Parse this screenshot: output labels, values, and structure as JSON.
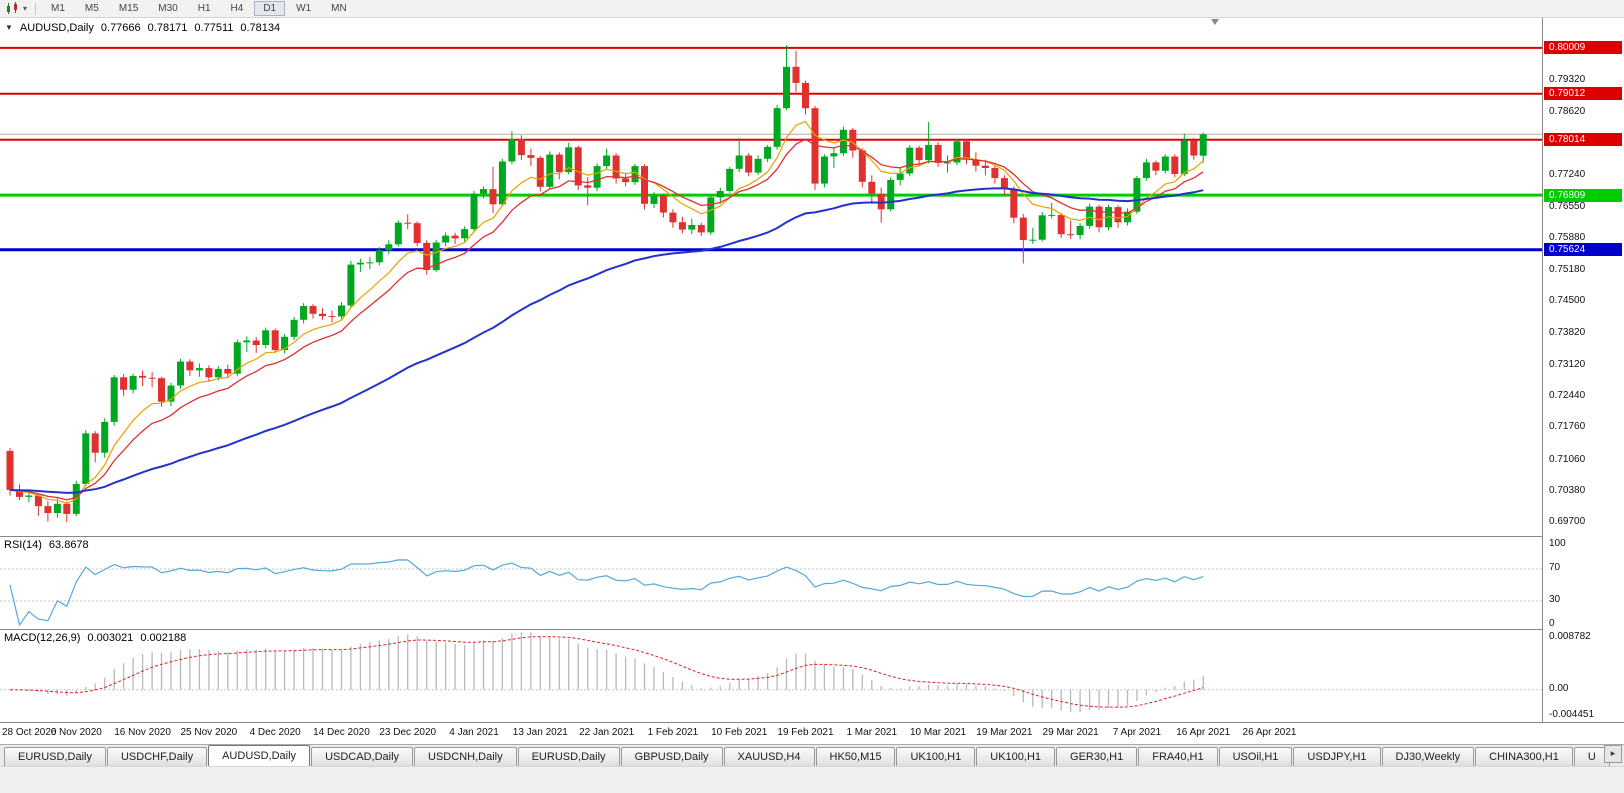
{
  "toolbar": {
    "timeframes": [
      "M1",
      "M5",
      "M15",
      "M30",
      "H1",
      "H4",
      "D1",
      "W1",
      "MN"
    ],
    "active_timeframe": "D1",
    "chart_icon": "candlestick-chart-icon"
  },
  "chart": {
    "title": {
      "symbol": "AUDUSD,Daily",
      "open": "0.77666",
      "high": "0.78171",
      "low": "0.77511",
      "close": "0.78134"
    },
    "price_axis_ticks": [
      "0.79320",
      "0.78620",
      "0.77240",
      "0.76550",
      "0.75880",
      "0.75180",
      "0.74500",
      "0.73820",
      "0.73120",
      "0.72440",
      "0.71760",
      "0.71060",
      "0.70380",
      "0.69700"
    ],
    "levels": [
      {
        "price": 0.80009,
        "label": "0.80009",
        "color": "#dd0000",
        "width": 2,
        "kind": "resistance"
      },
      {
        "price": 0.79012,
        "label": "0.79012",
        "color": "#dd0000",
        "width": 2,
        "kind": "resistance"
      },
      {
        "price": 0.78014,
        "label": "0.78014",
        "color": "#dd0000",
        "width": 2,
        "kind": "resistance"
      },
      {
        "price": 0.76809,
        "label": "0.76809",
        "color": "#00cc00",
        "width": 3,
        "kind": "support"
      },
      {
        "price": 0.75624,
        "label": "0.75624",
        "color": "#0000cc",
        "width": 3,
        "kind": "support"
      }
    ],
    "bid_line": {
      "price": 0.78134,
      "color": "#b4b49c"
    }
  },
  "indicators": {
    "rsi": {
      "label": "RSI(14)",
      "value": "63.8678",
      "period": 14,
      "color": "#56a8dc",
      "levels": [
        70,
        30
      ],
      "axis_values": [
        100,
        70,
        30,
        0
      ],
      "axis_labels": [
        "100",
        "70",
        "30",
        "0"
      ]
    },
    "macd": {
      "label": "MACD(12,26,9)",
      "value_main": "0.003021",
      "value_signal": "0.002188",
      "fast": 12,
      "slow": 26,
      "signal": 9,
      "hist_color": "#b8b8b8",
      "signal_color": "#dd2222",
      "axis_values": [
        0.008782,
        0,
        -0.004451
      ],
      "axis_labels": [
        "0.008782",
        "0.00",
        "-0.004451"
      ]
    },
    "moving_averages": [
      {
        "period": 8,
        "color": "#e8a200",
        "width": 1.2
      },
      {
        "period": 13,
        "color": "#e03030",
        "width": 1.3
      },
      {
        "period": 55,
        "color": "#2233cc",
        "width": 2
      }
    ]
  },
  "chart_data": {
    "type": "candlestick",
    "symbol": "AUDUSD",
    "timeframe": "Daily",
    "bull_color": "#00a822",
    "bear_color": "#e03030",
    "ylim": [
      0.694,
      0.8066
    ],
    "x_labels": [
      "28 Oct 2020",
      "6 Nov 2020",
      "16 Nov 2020",
      "25 Nov 2020",
      "4 Dec 2020",
      "14 Dec 2020",
      "23 Dec 2020",
      "4 Jan 2021",
      "13 Jan 2021",
      "22 Jan 2021",
      "1 Feb 2021",
      "10 Feb 2021",
      "19 Feb 2021",
      "1 Mar 2021",
      "10 Mar 2021",
      "19 Mar 2021",
      "29 Mar 2021",
      "7 Apr 2021",
      "16 Apr 2021",
      "26 Apr 2021"
    ],
    "candles": [
      [
        0.7125,
        0.7131,
        0.7028,
        0.704
      ],
      [
        0.704,
        0.7052,
        0.7018,
        0.7025
      ],
      [
        0.7025,
        0.7041,
        0.7013,
        0.7028
      ],
      [
        0.7028,
        0.7033,
        0.6984,
        0.7005
      ],
      [
        0.7005,
        0.7016,
        0.6971,
        0.699
      ],
      [
        0.699,
        0.7022,
        0.698,
        0.701
      ],
      [
        0.701,
        0.7015,
        0.697,
        0.6988
      ],
      [
        0.6988,
        0.706,
        0.6983,
        0.7053
      ],
      [
        0.7053,
        0.717,
        0.7048,
        0.7163
      ],
      [
        0.7163,
        0.7168,
        0.71,
        0.7121
      ],
      [
        0.7121,
        0.7196,
        0.711,
        0.7188
      ],
      [
        0.7188,
        0.729,
        0.718,
        0.7285
      ],
      [
        0.7285,
        0.7292,
        0.7245,
        0.7258
      ],
      [
        0.7258,
        0.7293,
        0.725,
        0.7288
      ],
      [
        0.7288,
        0.73,
        0.7266,
        0.7284
      ],
      [
        0.7284,
        0.7296,
        0.7263,
        0.7283
      ],
      [
        0.7283,
        0.7286,
        0.7221,
        0.7232
      ],
      [
        0.7232,
        0.7273,
        0.7222,
        0.7267
      ],
      [
        0.7267,
        0.7325,
        0.726,
        0.7319
      ],
      [
        0.7319,
        0.7324,
        0.7288,
        0.73
      ],
      [
        0.73,
        0.7315,
        0.7286,
        0.7305
      ],
      [
        0.7305,
        0.7311,
        0.7275,
        0.7285
      ],
      [
        0.7285,
        0.731,
        0.7278,
        0.7303
      ],
      [
        0.7303,
        0.7312,
        0.7283,
        0.7293
      ],
      [
        0.7293,
        0.7367,
        0.7287,
        0.7361
      ],
      [
        0.7361,
        0.7374,
        0.734,
        0.7365
      ],
      [
        0.7365,
        0.7372,
        0.7338,
        0.7355
      ],
      [
        0.7355,
        0.7393,
        0.7348,
        0.7387
      ],
      [
        0.7387,
        0.7391,
        0.7338,
        0.7344
      ],
      [
        0.7344,
        0.7379,
        0.7337,
        0.7373
      ],
      [
        0.7373,
        0.7416,
        0.7366,
        0.741
      ],
      [
        0.741,
        0.7446,
        0.7402,
        0.744
      ],
      [
        0.744,
        0.7444,
        0.7412,
        0.7423
      ],
      [
        0.7423,
        0.7435,
        0.741,
        0.7418
      ],
      [
        0.7418,
        0.743,
        0.7404,
        0.7417
      ],
      [
        0.7417,
        0.7448,
        0.7411,
        0.7441
      ],
      [
        0.7441,
        0.7538,
        0.7437,
        0.753
      ],
      [
        0.753,
        0.7543,
        0.7514,
        0.7534
      ],
      [
        0.7534,
        0.7546,
        0.752,
        0.7535
      ],
      [
        0.7535,
        0.7568,
        0.7528,
        0.7561
      ],
      [
        0.7561,
        0.7583,
        0.7552,
        0.7574
      ],
      [
        0.7574,
        0.7626,
        0.7569,
        0.7621
      ],
      [
        0.7621,
        0.7639,
        0.7607,
        0.762
      ],
      [
        0.762,
        0.7624,
        0.757,
        0.7577
      ],
      [
        0.7577,
        0.7583,
        0.7508,
        0.7518
      ],
      [
        0.7518,
        0.7584,
        0.7514,
        0.7578
      ],
      [
        0.7578,
        0.76,
        0.757,
        0.7593
      ],
      [
        0.7593,
        0.7599,
        0.7575,
        0.7587
      ],
      [
        0.7587,
        0.7613,
        0.758,
        0.7607
      ],
      [
        0.7607,
        0.769,
        0.76,
        0.7684
      ],
      [
        0.7684,
        0.77,
        0.7674,
        0.7694
      ],
      [
        0.7694,
        0.7743,
        0.7642,
        0.7661
      ],
      [
        0.7661,
        0.776,
        0.7658,
        0.7754
      ],
      [
        0.7754,
        0.782,
        0.7748,
        0.7803
      ],
      [
        0.7803,
        0.7811,
        0.7757,
        0.7768
      ],
      [
        0.7768,
        0.7782,
        0.7744,
        0.7762
      ],
      [
        0.7762,
        0.7766,
        0.7689,
        0.7699
      ],
      [
        0.7699,
        0.7776,
        0.7694,
        0.7769
      ],
      [
        0.7769,
        0.7774,
        0.7715,
        0.7731
      ],
      [
        0.7731,
        0.7795,
        0.7726,
        0.7785
      ],
      [
        0.7785,
        0.7789,
        0.7692,
        0.7702
      ],
      [
        0.7702,
        0.772,
        0.7659,
        0.7697
      ],
      [
        0.7697,
        0.775,
        0.769,
        0.7744
      ],
      [
        0.7744,
        0.7782,
        0.7738,
        0.7767
      ],
      [
        0.7767,
        0.7772,
        0.7706,
        0.7717
      ],
      [
        0.7717,
        0.773,
        0.77,
        0.7709
      ],
      [
        0.7709,
        0.7749,
        0.7703,
        0.7744
      ],
      [
        0.7744,
        0.7748,
        0.765,
        0.7662
      ],
      [
        0.7662,
        0.7687,
        0.7653,
        0.768
      ],
      [
        0.768,
        0.7684,
        0.7632,
        0.7643
      ],
      [
        0.7643,
        0.765,
        0.761,
        0.7622
      ],
      [
        0.7622,
        0.7634,
        0.7598,
        0.7606
      ],
      [
        0.7606,
        0.763,
        0.7596,
        0.7616
      ],
      [
        0.7616,
        0.7621,
        0.7592,
        0.76
      ],
      [
        0.76,
        0.768,
        0.7594,
        0.7676
      ],
      [
        0.7676,
        0.7697,
        0.7662,
        0.769
      ],
      [
        0.769,
        0.7742,
        0.7686,
        0.7738
      ],
      [
        0.7738,
        0.7805,
        0.7731,
        0.7767
      ],
      [
        0.7767,
        0.7772,
        0.7722,
        0.773
      ],
      [
        0.773,
        0.7768,
        0.7725,
        0.776
      ],
      [
        0.776,
        0.779,
        0.7753,
        0.7786
      ],
      [
        0.7786,
        0.7877,
        0.778,
        0.787
      ],
      [
        0.787,
        0.8007,
        0.7866,
        0.796
      ],
      [
        0.796,
        0.7995,
        0.7905,
        0.7925
      ],
      [
        0.7925,
        0.793,
        0.7856,
        0.787
      ],
      [
        0.787,
        0.7875,
        0.7692,
        0.7706
      ],
      [
        0.7706,
        0.777,
        0.7698,
        0.7765
      ],
      [
        0.7765,
        0.7784,
        0.774,
        0.7772
      ],
      [
        0.7772,
        0.783,
        0.7766,
        0.7823
      ],
      [
        0.7823,
        0.7827,
        0.7762,
        0.7778
      ],
      [
        0.7778,
        0.7783,
        0.7698,
        0.771
      ],
      [
        0.771,
        0.7724,
        0.7662,
        0.7684
      ],
      [
        0.7684,
        0.7697,
        0.7621,
        0.765
      ],
      [
        0.765,
        0.772,
        0.7645,
        0.7714
      ],
      [
        0.7714,
        0.774,
        0.7702,
        0.7728
      ],
      [
        0.7728,
        0.779,
        0.7722,
        0.7784
      ],
      [
        0.7784,
        0.7788,
        0.7745,
        0.7757
      ],
      [
        0.7757,
        0.784,
        0.775,
        0.779
      ],
      [
        0.779,
        0.7796,
        0.7742,
        0.7751
      ],
      [
        0.7751,
        0.7767,
        0.773,
        0.7752
      ],
      [
        0.7752,
        0.7804,
        0.7746,
        0.7798
      ],
      [
        0.7798,
        0.7802,
        0.7748,
        0.7758
      ],
      [
        0.7758,
        0.7774,
        0.7732,
        0.7745
      ],
      [
        0.7745,
        0.7758,
        0.7724,
        0.774
      ],
      [
        0.774,
        0.7746,
        0.7706,
        0.7718
      ],
      [
        0.7718,
        0.7724,
        0.768,
        0.7695
      ],
      [
        0.7695,
        0.77,
        0.762,
        0.7632
      ],
      [
        0.7632,
        0.764,
        0.7532,
        0.7583
      ],
      [
        0.7583,
        0.761,
        0.7575,
        0.7584
      ],
      [
        0.7584,
        0.7644,
        0.758,
        0.7637
      ],
      [
        0.7637,
        0.7664,
        0.763,
        0.7638
      ],
      [
        0.7638,
        0.7642,
        0.7588,
        0.7596
      ],
      [
        0.7596,
        0.7626,
        0.7586,
        0.7594
      ],
      [
        0.7594,
        0.762,
        0.7585,
        0.7614
      ],
      [
        0.7614,
        0.7662,
        0.7608,
        0.7656
      ],
      [
        0.7656,
        0.766,
        0.76,
        0.7611
      ],
      [
        0.7611,
        0.766,
        0.7605,
        0.7655
      ],
      [
        0.7655,
        0.7659,
        0.761,
        0.7622
      ],
      [
        0.7622,
        0.7652,
        0.7615,
        0.7645
      ],
      [
        0.7645,
        0.7723,
        0.764,
        0.7718
      ],
      [
        0.7718,
        0.776,
        0.7712,
        0.7752
      ],
      [
        0.7752,
        0.7756,
        0.7724,
        0.7734
      ],
      [
        0.7734,
        0.777,
        0.7728,
        0.7765
      ],
      [
        0.7765,
        0.777,
        0.772,
        0.7727
      ],
      [
        0.7727,
        0.7815,
        0.7722,
        0.78
      ],
      [
        0.78,
        0.7805,
        0.7758,
        0.7767
      ],
      [
        0.77666,
        0.78171,
        0.77511,
        0.78134
      ]
    ]
  },
  "tabbar": {
    "tabs": [
      {
        "label": "EURUSD,Daily"
      },
      {
        "label": "USDCHF,Daily"
      },
      {
        "label": "AUDUSD,Daily",
        "active": true
      },
      {
        "label": "USDCAD,Daily"
      },
      {
        "label": "USDCNH,Daily"
      },
      {
        "label": "EURUSD,Daily"
      },
      {
        "label": "GBPUSD,Daily"
      },
      {
        "label": "XAUUSD,H4"
      },
      {
        "label": "HK50,M15"
      },
      {
        "label": "UK100,H1"
      },
      {
        "label": "UK100,H1"
      },
      {
        "label": "GER30,H1"
      },
      {
        "label": "FRA40,H1"
      },
      {
        "label": "USOil,H1"
      },
      {
        "label": "USDJPY,H1"
      },
      {
        "label": "DJ30,Weekly"
      },
      {
        "label": "CHINA300,H1"
      },
      {
        "label": "U"
      }
    ],
    "scroll_right_icon": "chevron-right-icon"
  }
}
